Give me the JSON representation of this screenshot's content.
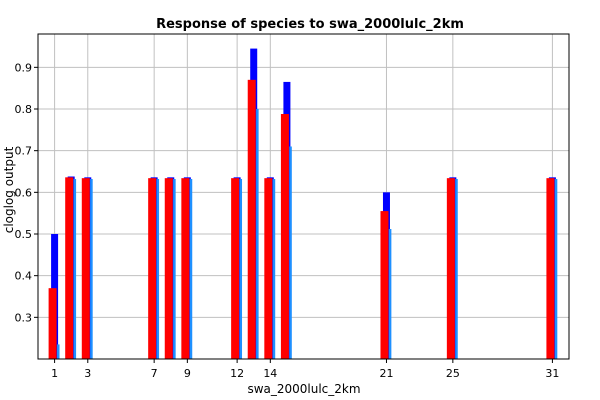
{
  "chart_data": {
    "type": "bar",
    "title": "Response of species to swa_2000lulc_2km",
    "xlabel": "swa_2000lulc_2km",
    "ylabel": "cloglog output",
    "xlim": [
      0,
      32
    ],
    "ylim": [
      0.2,
      0.98
    ],
    "x_ticks": [
      1,
      3,
      7,
      9,
      12,
      14,
      21,
      25,
      31
    ],
    "y_ticks": [
      0.3,
      0.4,
      0.5,
      0.6,
      0.7,
      0.8,
      0.9
    ],
    "grid": true,
    "colors": {
      "upper": "#0000ff",
      "mean": "#ff0000",
      "lower": "#1e90ff"
    },
    "categories": [
      1,
      2,
      3,
      7,
      8,
      9,
      12,
      13,
      14,
      15,
      21,
      25,
      31
    ],
    "series": [
      {
        "values": [
          0.5,
          0.638,
          0.636,
          0.636,
          0.636,
          0.636,
          0.636,
          0.945,
          0.636,
          0.865,
          0.6,
          0.636,
          0.636
        ]
      },
      {
        "values": [
          0.37,
          0.636,
          0.634,
          0.634,
          0.634,
          0.634,
          0.634,
          0.87,
          0.634,
          0.788,
          0.555,
          0.634,
          0.634
        ]
      },
      {
        "values": [
          0.235,
          0.632,
          0.632,
          0.632,
          0.632,
          0.632,
          0.632,
          0.8,
          0.632,
          0.71,
          0.512,
          0.632,
          0.632
        ]
      }
    ]
  }
}
